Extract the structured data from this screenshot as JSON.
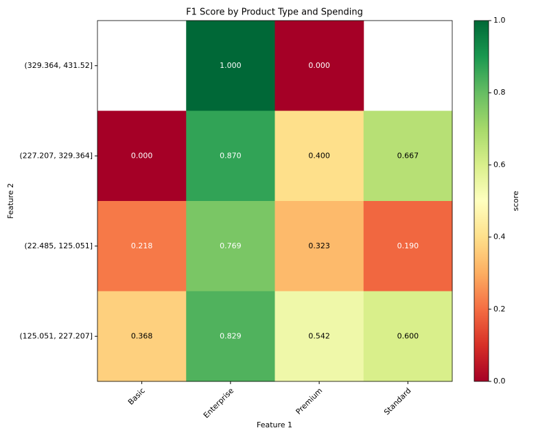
{
  "chart_data": {
    "type": "heatmap",
    "title": "F1 Score by Product Type and Spending",
    "x_label": "Feature 1",
    "y_label": "Feature 2",
    "categories": [
      "Basic",
      "Enterprise",
      "Premium",
      "Standard"
    ],
    "rows": [
      "(329.364, 431.52]",
      "(227.207, 329.364]",
      "(22.485, 125.051]",
      "(125.051, 227.207]"
    ],
    "values": [
      [
        null,
        1,
        0,
        null
      ],
      [
        0,
        0.87,
        0.4,
        0.667
      ],
      [
        0.218,
        0.769,
        0.323,
        0.19
      ],
      [
        0.368,
        0.829,
        0.542,
        0.6
      ]
    ],
    "value_labels": [
      [
        null,
        "1.000",
        "0.000",
        null
      ],
      [
        "0.000",
        "0.870",
        "0.400",
        "0.667"
      ],
      [
        "0.218",
        "0.769",
        "0.323",
        "0.190"
      ],
      [
        "0.368",
        "0.829",
        "0.542",
        "0.600"
      ]
    ],
    "colorbar_label": "score",
    "clim": [
      0,
      1
    ],
    "cticks": [
      {
        "value": 0,
        "label": "0.0"
      },
      {
        "value": 0.2,
        "label": "0.2"
      },
      {
        "value": 0.4,
        "label": "0.4"
      },
      {
        "value": 0.6,
        "label": "0.6"
      },
      {
        "value": 0.8,
        "label": "0.8"
      },
      {
        "value": 1,
        "label": "1.0"
      }
    ],
    "colormap": [
      "#a50026",
      "#d73027",
      "#f46d43",
      "#fdae61",
      "#fee08b",
      "#ffffbf",
      "#d9ef8b",
      "#a6d96a",
      "#66bd63",
      "#1a9850",
      "#006837"
    ]
  }
}
